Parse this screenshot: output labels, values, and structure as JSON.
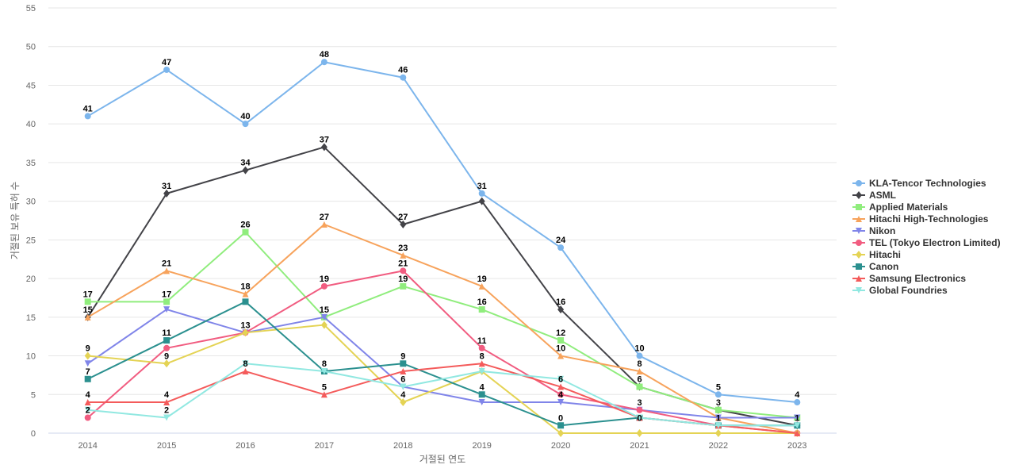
{
  "chart_data": {
    "type": "line",
    "title": "",
    "xlabel": "거절된 연도",
    "ylabel": "거절된 보유 특허 수",
    "ylim": [
      0,
      55
    ],
    "yticks": [
      0,
      5,
      10,
      15,
      20,
      25,
      30,
      35,
      40,
      45,
      50,
      55
    ],
    "grid": true,
    "legend_position": "right",
    "x": [
      "2014",
      "2015",
      "2016",
      "2017",
      "2018",
      "2019",
      "2020",
      "2021",
      "2022",
      "2023"
    ],
    "series": [
      {
        "name": "KLA-Tencor Technologies",
        "color": "#7cb5ec",
        "marker": "circle",
        "values": [
          41,
          47,
          40,
          48,
          46,
          31,
          24,
          10,
          5,
          4
        ]
      },
      {
        "name": "ASML",
        "color": "#434348",
        "marker": "diamond",
        "values": [
          15,
          31,
          34,
          37,
          27,
          30,
          16,
          6,
          3,
          1
        ]
      },
      {
        "name": "Applied Materials",
        "color": "#90ed7d",
        "marker": "square",
        "values": [
          17,
          17,
          26,
          15,
          19,
          16,
          12,
          6,
          3,
          2
        ]
      },
      {
        "name": "Hitachi High-Technologies",
        "color": "#f7a35c",
        "marker": "triangle",
        "values": [
          15,
          21,
          18,
          27,
          23,
          19,
          10,
          8,
          2,
          0
        ]
      },
      {
        "name": "Nikon",
        "color": "#8085e9",
        "marker": "triangle-down",
        "values": [
          9,
          16,
          13,
          15,
          6,
          4,
          4,
          3,
          2,
          2
        ]
      },
      {
        "name": "TEL (Tokyo Electron Limited)",
        "color": "#f15c80",
        "marker": "circle",
        "values": [
          2,
          11,
          13,
          19,
          21,
          11,
          5,
          3,
          1,
          0
        ]
      },
      {
        "name": "Hitachi",
        "color": "#e4d354",
        "marker": "diamond",
        "values": [
          10,
          9,
          13,
          14,
          4,
          8,
          0,
          0,
          0,
          0
        ]
      },
      {
        "name": "Canon",
        "color": "#2b908f",
        "marker": "square",
        "values": [
          7,
          12,
          17,
          8,
          9,
          5,
          1,
          2,
          1,
          1
        ]
      },
      {
        "name": "Samsung Electronics",
        "color": "#f45b5b",
        "marker": "triangle",
        "values": [
          4,
          4,
          8,
          5,
          8,
          9,
          6,
          2,
          1,
          0
        ]
      },
      {
        "name": "Global Foundries",
        "color": "#91e8e1",
        "marker": "triangle-down",
        "values": [
          3,
          2,
          9,
          8,
          6,
          8,
          7,
          2,
          1,
          1
        ]
      }
    ],
    "data_labels": [
      {
        "x": "2014",
        "y": 41,
        "text": "41"
      },
      {
        "x": "2014",
        "y": 17,
        "text": "17"
      },
      {
        "x": "2014",
        "y": 15,
        "text": "15"
      },
      {
        "x": "2014",
        "y": 10,
        "text": "9"
      },
      {
        "x": "2014",
        "y": 7,
        "text": "7"
      },
      {
        "x": "2014",
        "y": 4,
        "text": "4"
      },
      {
        "x": "2014",
        "y": 2,
        "text": "2"
      },
      {
        "x": "2015",
        "y": 47,
        "text": "47"
      },
      {
        "x": "2015",
        "y": 31,
        "text": "31"
      },
      {
        "x": "2015",
        "y": 21,
        "text": "21"
      },
      {
        "x": "2015",
        "y": 17,
        "text": "17"
      },
      {
        "x": "2015",
        "y": 12,
        "text": "11"
      },
      {
        "x": "2015",
        "y": 9,
        "text": "9"
      },
      {
        "x": "2015",
        "y": 4,
        "text": "4"
      },
      {
        "x": "2015",
        "y": 2,
        "text": "2"
      },
      {
        "x": "2016",
        "y": 40,
        "text": "40"
      },
      {
        "x": "2016",
        "y": 34,
        "text": "34"
      },
      {
        "x": "2016",
        "y": 26,
        "text": "26"
      },
      {
        "x": "2016",
        "y": 18,
        "text": "18"
      },
      {
        "x": "2016",
        "y": 13,
        "text": "13"
      },
      {
        "x": "2016",
        "y": 8,
        "text": "8"
      },
      {
        "x": "2017",
        "y": 48,
        "text": "48"
      },
      {
        "x": "2017",
        "y": 37,
        "text": "37"
      },
      {
        "x": "2017",
        "y": 27,
        "text": "27"
      },
      {
        "x": "2017",
        "y": 19,
        "text": "19"
      },
      {
        "x": "2017",
        "y": 15,
        "text": "15"
      },
      {
        "x": "2017",
        "y": 8,
        "text": "8"
      },
      {
        "x": "2017",
        "y": 5,
        "text": "5"
      },
      {
        "x": "2018",
        "y": 46,
        "text": "46"
      },
      {
        "x": "2018",
        "y": 27,
        "text": "27"
      },
      {
        "x": "2018",
        "y": 23,
        "text": "23"
      },
      {
        "x": "2018",
        "y": 21,
        "text": "21"
      },
      {
        "x": "2018",
        "y": 19,
        "text": "19"
      },
      {
        "x": "2018",
        "y": 9,
        "text": "9"
      },
      {
        "x": "2018",
        "y": 6,
        "text": "6"
      },
      {
        "x": "2018",
        "y": 4,
        "text": "4"
      },
      {
        "x": "2019",
        "y": 31,
        "text": "31"
      },
      {
        "x": "2019",
        "y": 19,
        "text": "19"
      },
      {
        "x": "2019",
        "y": 16,
        "text": "16"
      },
      {
        "x": "2019",
        "y": 11,
        "text": "11"
      },
      {
        "x": "2019",
        "y": 9,
        "text": "8"
      },
      {
        "x": "2019",
        "y": 5,
        "text": "4"
      },
      {
        "x": "2020",
        "y": 24,
        "text": "24"
      },
      {
        "x": "2020",
        "y": 16,
        "text": "16"
      },
      {
        "x": "2020",
        "y": 12,
        "text": "12"
      },
      {
        "x": "2020",
        "y": 10,
        "text": "10"
      },
      {
        "x": "2020",
        "y": 6,
        "text": "6"
      },
      {
        "x": "2020",
        "y": 4,
        "text": "4"
      },
      {
        "x": "2020",
        "y": 1,
        "text": "0"
      },
      {
        "x": "2021",
        "y": 10,
        "text": "10"
      },
      {
        "x": "2021",
        "y": 8,
        "text": "8"
      },
      {
        "x": "2021",
        "y": 6,
        "text": "6"
      },
      {
        "x": "2021",
        "y": 3,
        "text": "3"
      },
      {
        "x": "2021",
        "y": 1,
        "text": "0"
      },
      {
        "x": "2022",
        "y": 5,
        "text": "5"
      },
      {
        "x": "2022",
        "y": 3,
        "text": "3"
      },
      {
        "x": "2022",
        "y": 1,
        "text": "1"
      },
      {
        "x": "2023",
        "y": 4,
        "text": "4"
      },
      {
        "x": "2023",
        "y": 1,
        "text": "1"
      }
    ]
  }
}
